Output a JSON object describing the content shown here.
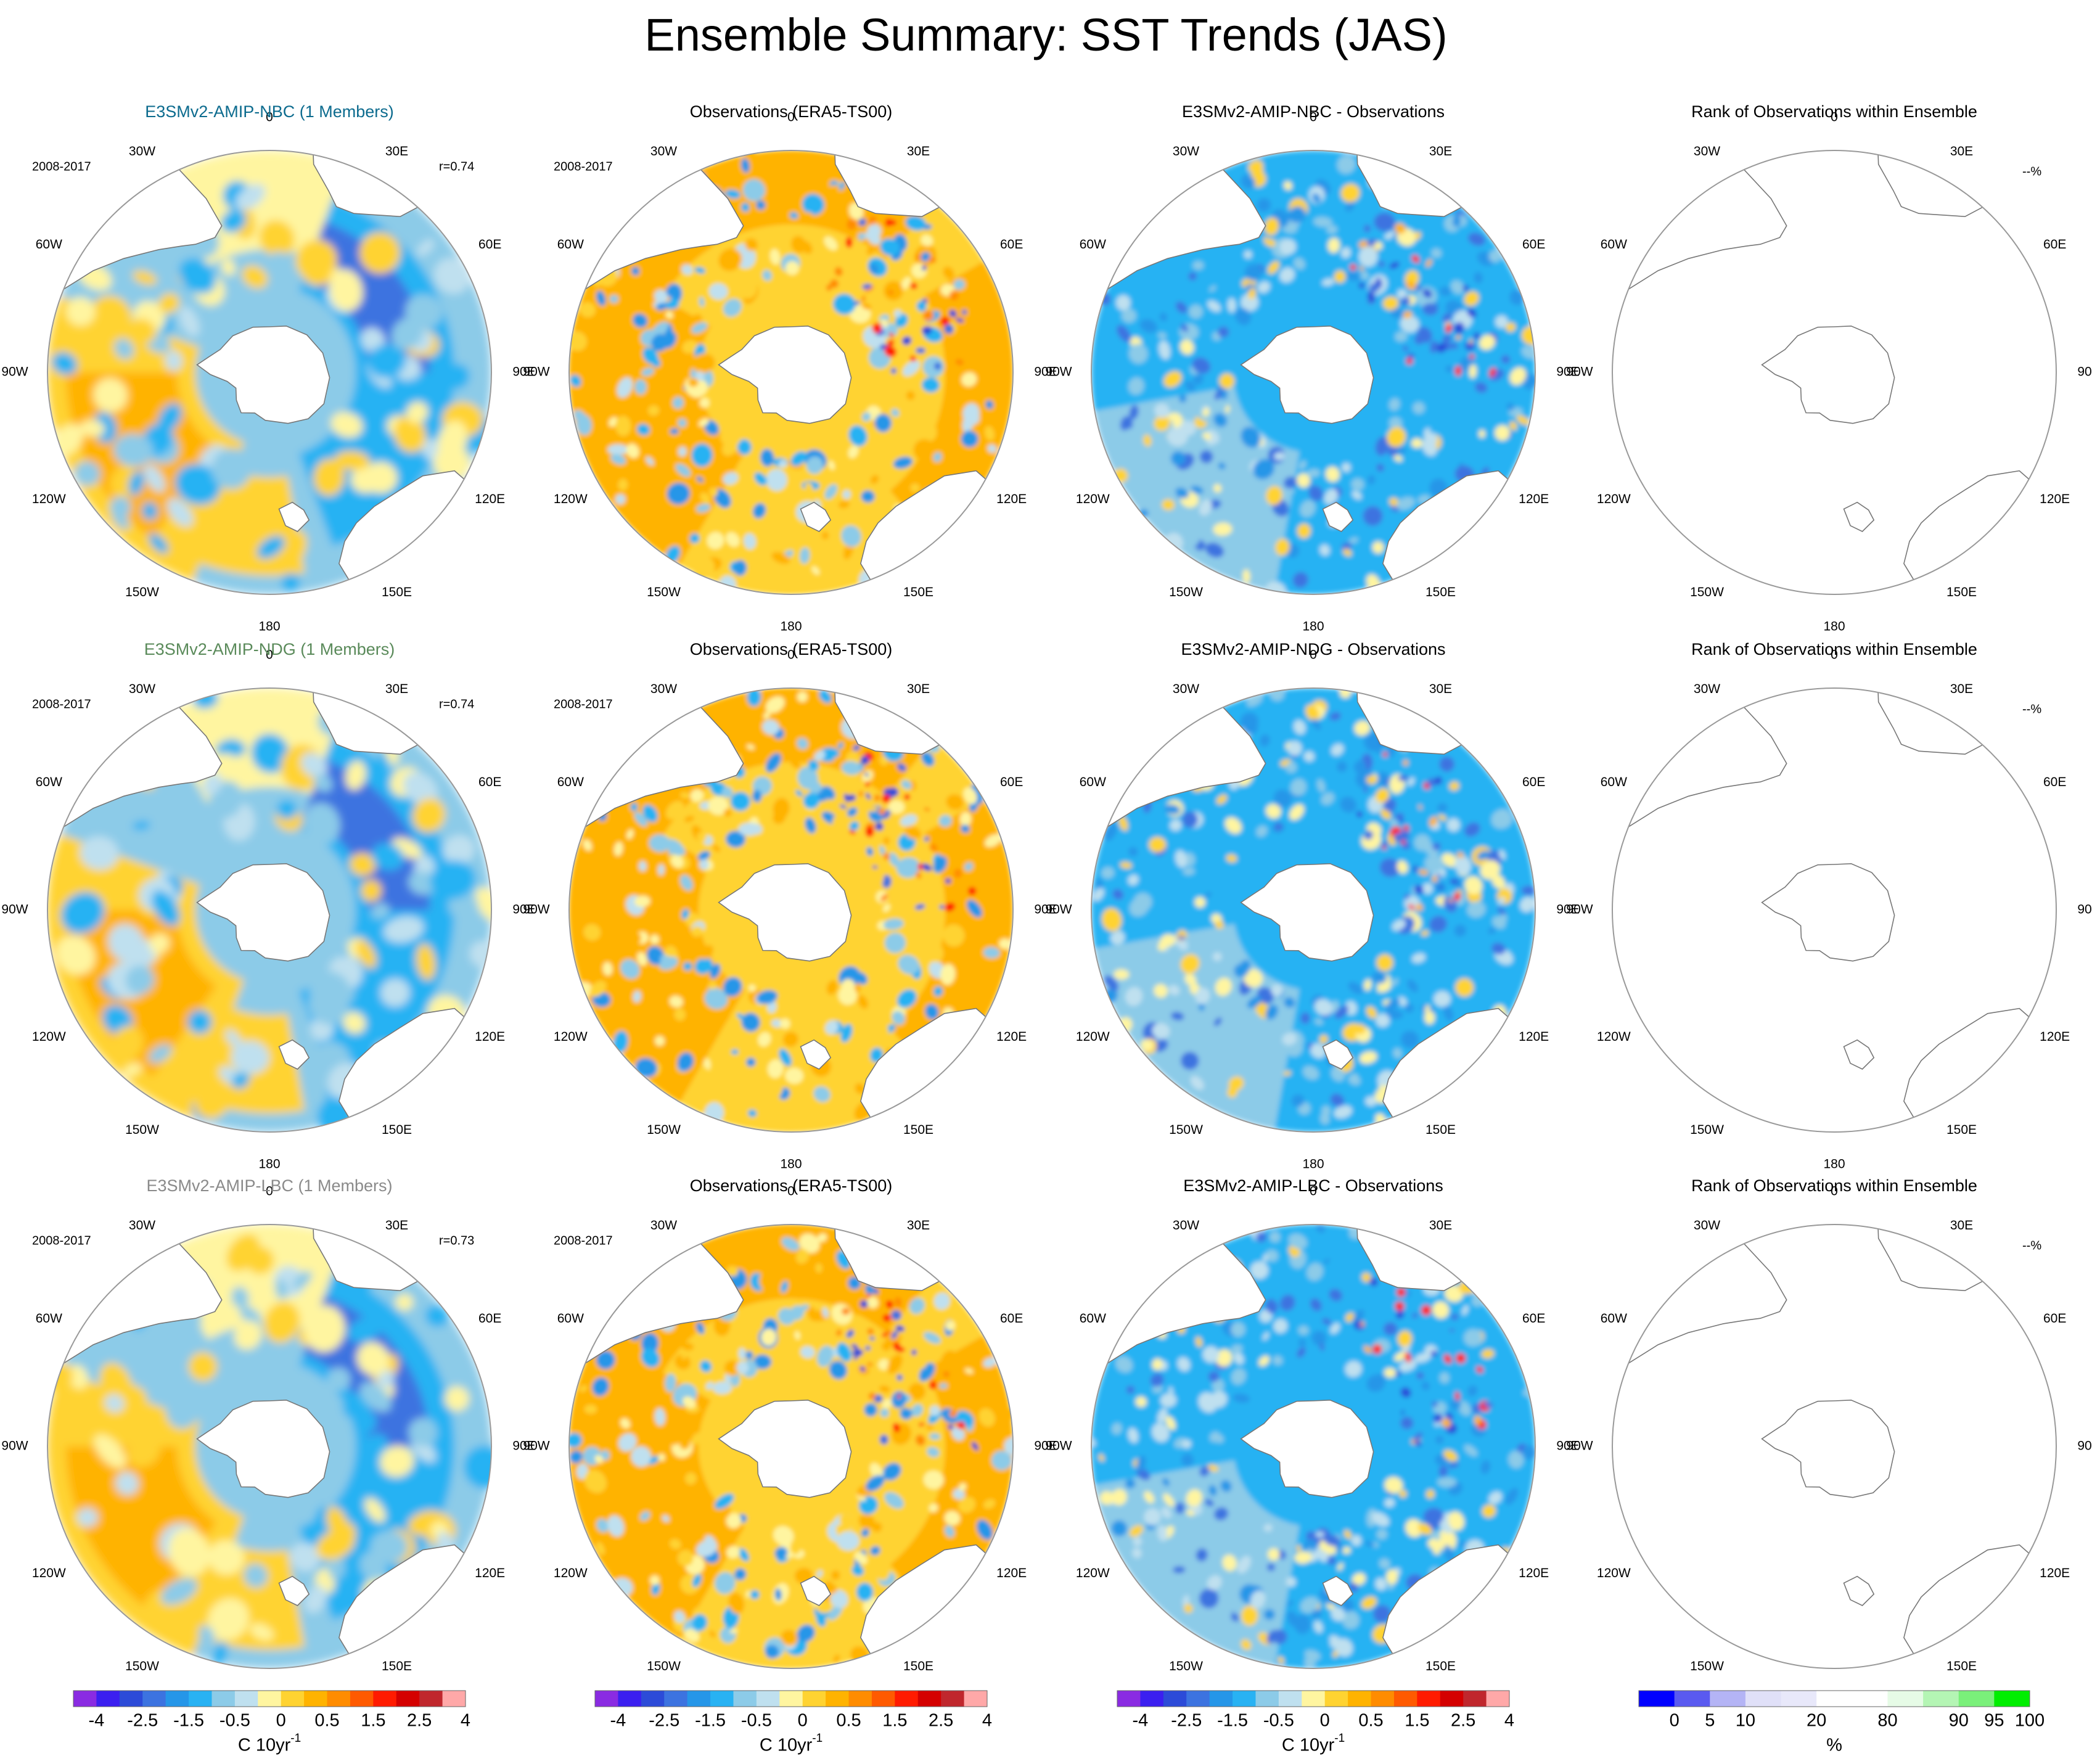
{
  "figure": {
    "title": "Ensemble Summary: SST Trends (JAS)",
    "colors": {
      "model_title_nbc": "#0c6b8e",
      "model_title_ndg": "#5a8a5a",
      "model_title_lbc": "#8a8a8a",
      "text": "#000000",
      "circle": "#999999",
      "coast": "#777777"
    }
  },
  "rows": [
    {
      "model_title": "E3SMv2-AMIP-NBC (1 Members)",
      "period": "2008-2017",
      "correlation": "r=0.74",
      "obs_title": "Observations (ERA5-TS00)",
      "obs_period": "2008-2017",
      "diff_title": "E3SMv2-AMIP-NBC - Observations",
      "rank_title": "Rank of Observations within Ensemble",
      "rank_percent": "--%"
    },
    {
      "model_title": "E3SMv2-AMIP-NDG (1 Members)",
      "period": "2008-2017",
      "correlation": "r=0.74",
      "obs_title": "Observations (ERA5-TS00)",
      "obs_period": "2008-2017",
      "diff_title": "E3SMv2-AMIP-NDG - Observations",
      "rank_title": "Rank of Observations within Ensemble",
      "rank_percent": "--%"
    },
    {
      "model_title": "E3SMv2-AMIP-LBC (1 Members)",
      "period": "2008-2017",
      "correlation": "r=0.73",
      "obs_title": "Observations (ERA5-TS00)",
      "obs_period": "2008-2017",
      "diff_title": "E3SMv2-AMIP-LBC - Observations",
      "rank_title": "Rank of Observations within Ensemble",
      "rank_percent": "--%"
    }
  ],
  "longitude_labels": [
    "0",
    "30E",
    "60E",
    "90E",
    "120E",
    "150E",
    "180",
    "150W",
    "120W",
    "90W",
    "60W",
    "30W"
  ],
  "trend_colorbar": {
    "colors": [
      "#8a2be2",
      "#3b1ff0",
      "#2c4bd8",
      "#3c73e0",
      "#2596e8",
      "#28b2f3",
      "#8ccbe8",
      "#bfe0ef",
      "#fff5a0",
      "#ffd331",
      "#ffb300",
      "#ff8c00",
      "#ff5a00",
      "#ff1b00",
      "#d40000",
      "#c0272d",
      "#ffa8a8"
    ],
    "tick_labels": [
      "-4",
      "-2.5",
      "-1.5",
      "-0.5",
      "0",
      "0.5",
      "1.5",
      "2.5",
      "4"
    ],
    "tick_values": [
      -4,
      -2.5,
      -1.5,
      -0.5,
      0,
      0.5,
      1.5,
      2.5,
      4
    ],
    "units_main": "C 10yr",
    "units_sup": "-1"
  },
  "rank_colorbar": {
    "colors": [
      "#0000ff",
      "#5a5af0",
      "#b4b4f5",
      "#e0e0f8",
      "#e8e8fa",
      "#ffffff",
      "#ffffff",
      "#e6fbe6",
      "#b4f5b4",
      "#7af07a",
      "#00ee00"
    ],
    "tick_labels": [
      "0",
      "5",
      "10",
      "20",
      "80",
      "90",
      "95",
      "100"
    ],
    "units": "%"
  }
}
